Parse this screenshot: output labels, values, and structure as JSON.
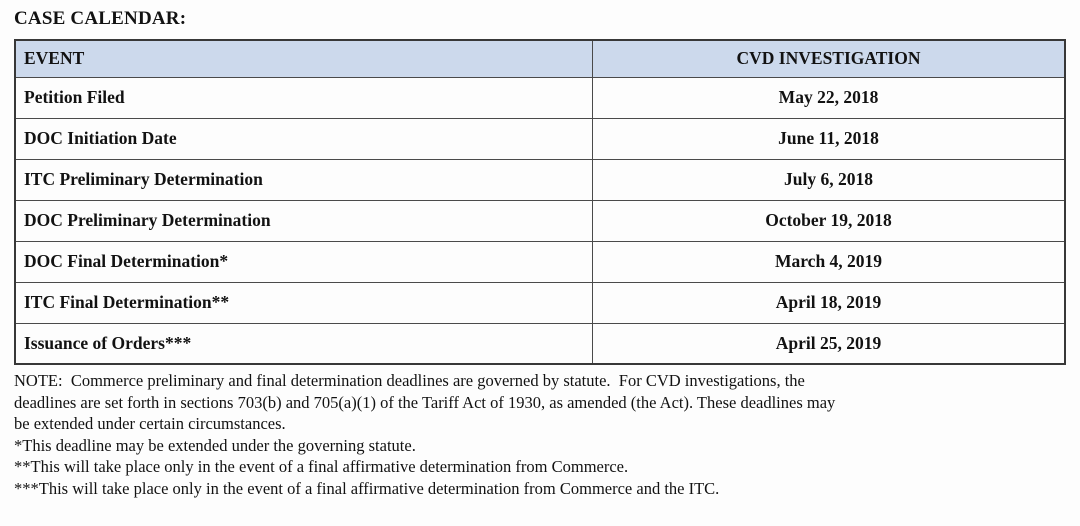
{
  "page_title": "CASE CALENDAR:",
  "table": {
    "headers": {
      "event": "EVENT",
      "investigation": "CVD INVESTIGATION"
    },
    "rows": [
      {
        "event": "Petition Filed",
        "date": "May 22, 2018"
      },
      {
        "event": "DOC Initiation Date",
        "date": "June 11, 2018"
      },
      {
        "event": "ITC Preliminary Determination",
        "date": "July 6, 2018"
      },
      {
        "event": "DOC Preliminary Determination",
        "date": "October 19, 2018"
      },
      {
        "event": "DOC Final Determination*",
        "date": "March 4, 2019"
      },
      {
        "event": "ITC Final Determination**",
        "date": "April 18, 2019"
      },
      {
        "event": "Issuance of Orders***",
        "date": "April 25, 2019"
      }
    ]
  },
  "notes": {
    "lines": [
      "NOTE:  Commerce preliminary and final determination deadlines are governed by statute.  For CVD investigations, the",
      "deadlines are set forth in sections 703(b) and 705(a)(1) of the Tariff Act of 1930, as amended (the Act). These deadlines may",
      "be extended under certain circumstances."
    ],
    "footnotes": [
      "*This deadline may be extended under the governing statute.",
      "**This will take place only in the event of a final affirmative determination from Commerce.",
      "***This will take place only in the event of a final affirmative determination from Commerce and the ITC."
    ]
  },
  "colors": {
    "header_row_bg": "#ccd9ec",
    "table_border": "#383838",
    "text": "#121212"
  }
}
